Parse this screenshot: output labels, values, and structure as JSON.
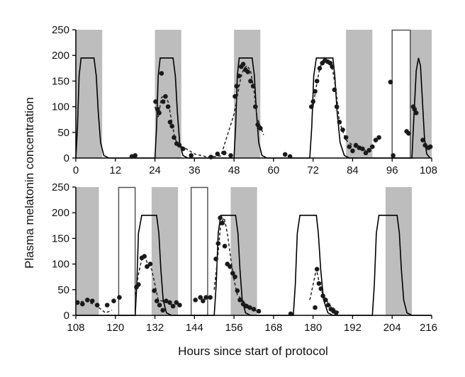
{
  "chart_data": {
    "type": "line",
    "ylabel": "Plasma melatonin concentration",
    "xlabel": "Hours since start of protocol",
    "colors": {
      "dark_episode": "#bdbdbd",
      "empty_episode_stroke": "#555555",
      "model": "#000000",
      "observed": "#222222",
      "points": "#1a1a1a"
    },
    "panels": [
      {
        "xlim": [
          0,
          108
        ],
        "ylim": [
          0,
          250
        ],
        "xticks": [
          "0",
          "12",
          "24",
          "36",
          "48",
          "60",
          "72",
          "84",
          "96",
          "108"
        ],
        "yticks": [
          "0",
          "50",
          "100",
          "150",
          "200",
          "250"
        ],
        "dark_episodes": [
          [
            0,
            8
          ],
          [
            24,
            32
          ],
          [
            48,
            56
          ],
          [
            82,
            90
          ],
          [
            101.5,
            108
          ]
        ],
        "open_episodes": [
          [
            96,
            101.5
          ]
        ],
        "model_curve": [
          [
            0,
            0
          ],
          [
            0.5,
            60
          ],
          [
            1,
            160
          ],
          [
            1.6,
            195
          ],
          [
            5.5,
            195
          ],
          [
            6.2,
            160
          ],
          [
            6.8,
            90
          ],
          [
            7.5,
            30
          ],
          [
            8.5,
            5
          ],
          [
            10,
            0
          ],
          [
            24,
            0
          ],
          [
            24.5,
            60
          ],
          [
            25,
            160
          ],
          [
            25.6,
            195
          ],
          [
            29.5,
            195
          ],
          [
            30.2,
            160
          ],
          [
            30.8,
            90
          ],
          [
            31.5,
            30
          ],
          [
            32.5,
            5
          ],
          [
            34,
            0
          ],
          [
            48,
            0
          ],
          [
            48.5,
            60
          ],
          [
            49,
            160
          ],
          [
            49.6,
            195
          ],
          [
            53.5,
            195
          ],
          [
            54.2,
            160
          ],
          [
            54.8,
            90
          ],
          [
            55.5,
            30
          ],
          [
            56.5,
            5
          ],
          [
            58,
            0
          ],
          [
            71,
            0
          ],
          [
            71.6,
            60
          ],
          [
            72.2,
            160
          ],
          [
            73,
            195
          ],
          [
            78,
            195
          ],
          [
            78.6,
            160
          ],
          [
            79.3,
            90
          ],
          [
            80.2,
            30
          ],
          [
            81.5,
            5
          ],
          [
            83,
            0
          ],
          [
            102,
            0
          ],
          [
            102.6,
            80
          ],
          [
            103.3,
            170
          ],
          [
            104,
            195
          ],
          [
            104.6,
            180
          ],
          [
            105.2,
            110
          ],
          [
            105.8,
            40
          ],
          [
            106.5,
            8
          ],
          [
            107.5,
            0
          ]
        ],
        "observed_curve": [
          [
            24,
            100
          ],
          [
            25,
            80
          ],
          [
            26,
            118
          ],
          [
            27,
            122
          ],
          [
            28,
            110
          ],
          [
            29,
            75
          ],
          [
            30,
            40
          ],
          [
            31,
            25
          ],
          [
            33,
            20
          ],
          [
            36,
            8
          ],
          [
            40,
            2
          ],
          [
            44,
            4
          ],
          [
            48,
            85
          ],
          [
            49,
            120
          ],
          [
            50,
            155
          ],
          [
            51,
            175
          ],
          [
            52,
            180
          ],
          [
            53,
            170
          ],
          [
            54,
            135
          ],
          [
            55,
            80
          ],
          [
            57,
            45
          ],
          [
            72,
            100
          ],
          [
            73,
            140
          ],
          [
            74,
            175
          ],
          [
            75,
            190
          ],
          [
            76,
            190
          ],
          [
            77,
            185
          ],
          [
            78,
            170
          ],
          [
            79,
            130
          ],
          [
            80,
            70
          ],
          [
            82,
            35
          ],
          [
            85,
            20
          ],
          [
            88,
            15
          ]
        ],
        "points": [
          [
            17,
            3
          ],
          [
            18,
            5
          ],
          [
            24.2,
            110
          ],
          [
            24.8,
            95
          ],
          [
            25.3,
            88
          ],
          [
            26,
            165
          ],
          [
            26.5,
            110
          ],
          [
            27.2,
            120
          ],
          [
            28,
            100
          ],
          [
            28.6,
            70
          ],
          [
            29.2,
            62
          ],
          [
            29.8,
            40
          ],
          [
            30.6,
            28
          ],
          [
            31.4,
            25
          ],
          [
            32.5,
            18
          ],
          [
            35,
            5
          ],
          [
            41,
            2
          ],
          [
            43,
            8
          ],
          [
            45,
            10
          ],
          [
            47,
            5
          ],
          [
            48.3,
            120
          ],
          [
            48.8,
            140
          ],
          [
            49.5,
            160
          ],
          [
            50.2,
            178
          ],
          [
            50.8,
            183
          ],
          [
            51.5,
            172
          ],
          [
            52.2,
            168
          ],
          [
            53,
            150
          ],
          [
            53.8,
            140
          ],
          [
            54.5,
            100
          ],
          [
            55.2,
            65
          ],
          [
            56,
            58
          ],
          [
            63.5,
            7
          ],
          [
            65,
            3
          ],
          [
            71.5,
            100
          ],
          [
            72,
            110
          ],
          [
            72.6,
            130
          ],
          [
            73.2,
            150
          ],
          [
            74,
            175
          ],
          [
            74.8,
            185
          ],
          [
            75.6,
            190
          ],
          [
            76.4,
            188
          ],
          [
            77.2,
            185
          ],
          [
            77.8,
            178
          ],
          [
            78.5,
            133
          ],
          [
            79.2,
            100
          ],
          [
            80,
            70
          ],
          [
            81,
            55
          ],
          [
            82,
            40
          ],
          [
            83,
            22
          ],
          [
            84,
            14
          ],
          [
            85,
            25
          ],
          [
            86,
            20
          ],
          [
            87,
            18
          ],
          [
            88,
            10
          ],
          [
            89,
            15
          ],
          [
            90,
            22
          ],
          [
            91,
            35
          ],
          [
            92,
            40
          ],
          [
            95.5,
            148
          ],
          [
            96.3,
            5
          ],
          [
            100.4,
            52
          ],
          [
            101,
            48
          ],
          [
            102.4,
            100
          ],
          [
            102.8,
            95
          ],
          [
            103.3,
            88
          ],
          [
            105.3,
            35
          ],
          [
            106,
            25
          ],
          [
            107,
            20
          ],
          [
            107.6,
            22
          ]
        ]
      },
      {
        "xlim": [
          108,
          216
        ],
        "ylim": [
          0,
          250
        ],
        "xticks": [
          "108",
          "120",
          "132",
          "144",
          "156",
          "168",
          "180",
          "192",
          "204",
          "216"
        ],
        "yticks": [
          "0",
          "50",
          "100",
          "150",
          "200",
          "250"
        ],
        "dark_episodes": [
          [
            108,
            115
          ],
          [
            131,
            139
          ],
          [
            155,
            163
          ],
          [
            202,
            210
          ]
        ],
        "open_episodes": [
          [
            121,
            126
          ],
          [
            143,
            148
          ]
        ],
        "model_curve": [
          [
            108,
            0
          ],
          [
            126,
            0
          ],
          [
            126.5,
            60
          ],
          [
            127,
            160
          ],
          [
            128,
            195
          ],
          [
            132.5,
            195
          ],
          [
            133.2,
            160
          ],
          [
            133.8,
            90
          ],
          [
            134.5,
            30
          ],
          [
            135.5,
            5
          ],
          [
            137,
            0
          ],
          [
            150,
            0
          ],
          [
            150.6,
            60
          ],
          [
            151.2,
            160
          ],
          [
            152,
            195
          ],
          [
            156.5,
            195
          ],
          [
            157.2,
            160
          ],
          [
            157.8,
            90
          ],
          [
            158.5,
            30
          ],
          [
            159.5,
            5
          ],
          [
            161,
            0
          ],
          [
            174,
            0
          ],
          [
            174.6,
            60
          ],
          [
            175.2,
            160
          ],
          [
            176,
            195
          ],
          [
            181,
            195
          ],
          [
            181.6,
            160
          ],
          [
            182.3,
            90
          ],
          [
            183.2,
            30
          ],
          [
            184.5,
            5
          ],
          [
            186,
            0
          ],
          [
            198,
            0
          ],
          [
            198.6,
            60
          ],
          [
            199.2,
            160
          ],
          [
            200,
            195
          ],
          [
            205.5,
            195
          ],
          [
            206.2,
            160
          ],
          [
            206.8,
            90
          ],
          [
            207.5,
            30
          ],
          [
            208.5,
            5
          ],
          [
            210,
            0
          ],
          [
            216,
            0
          ]
        ],
        "observed_curve": [
          [
            108,
            25
          ],
          [
            111,
            28
          ],
          [
            114,
            20
          ],
          [
            117,
            5
          ],
          [
            119,
            10
          ],
          [
            126,
            40
          ],
          [
            127,
            80
          ],
          [
            128,
            110
          ],
          [
            129,
            115
          ],
          [
            130,
            95
          ],
          [
            131,
            90
          ],
          [
            132,
            60
          ],
          [
            133,
            30
          ],
          [
            136,
            25
          ],
          [
            138,
            15
          ],
          [
            150,
            50
          ],
          [
            151,
            110
          ],
          [
            152,
            180
          ],
          [
            153,
            190
          ],
          [
            154,
            160
          ],
          [
            155,
            110
          ],
          [
            156,
            70
          ],
          [
            157,
            40
          ],
          [
            160,
            20
          ],
          [
            163,
            8
          ],
          [
            179,
            30
          ],
          [
            180,
            60
          ],
          [
            181,
            90
          ],
          [
            182,
            60
          ],
          [
            183,
            40
          ],
          [
            185,
            20
          ],
          [
            188,
            5
          ]
        ],
        "points": [
          [
            108.5,
            25
          ],
          [
            110,
            22
          ],
          [
            111.5,
            30
          ],
          [
            113,
            28
          ],
          [
            114.5,
            20
          ],
          [
            117.5,
            20
          ],
          [
            119.5,
            28
          ],
          [
            121.2,
            35
          ],
          [
            126.4,
            55
          ],
          [
            127,
            60
          ],
          [
            128,
            112
          ],
          [
            128.8,
            115
          ],
          [
            129.6,
            95
          ],
          [
            130.6,
            100
          ],
          [
            131.8,
            48
          ],
          [
            132.6,
            28
          ],
          [
            133.4,
            20
          ],
          [
            134.4,
            10
          ],
          [
            135.4,
            28
          ],
          [
            136.5,
            25
          ],
          [
            137.5,
            18
          ],
          [
            138.5,
            25
          ],
          [
            139.5,
            20
          ],
          [
            144.3,
            30
          ],
          [
            145.8,
            35
          ],
          [
            146.6,
            28
          ],
          [
            147.5,
            35
          ],
          [
            148.8,
            35
          ],
          [
            150.5,
            110
          ],
          [
            151.2,
            140
          ],
          [
            151.8,
            190
          ],
          [
            152.5,
            180
          ],
          [
            153.2,
            135
          ],
          [
            154,
            100
          ],
          [
            154.8,
            95
          ],
          [
            155.6,
            82
          ],
          [
            156.3,
            75
          ],
          [
            157,
            48
          ],
          [
            157.8,
            30
          ],
          [
            158.8,
            22
          ],
          [
            159.8,
            18
          ],
          [
            160.8,
            15
          ],
          [
            162,
            12
          ],
          [
            163.5,
            8
          ],
          [
            173.2,
            3
          ],
          [
            180.6,
            15
          ],
          [
            181.2,
            90
          ],
          [
            181.8,
            62
          ],
          [
            182.4,
            52
          ],
          [
            183,
            38
          ],
          [
            183.8,
            30
          ],
          [
            184.6,
            20
          ],
          [
            185.4,
            12
          ],
          [
            186.2,
            8
          ],
          [
            187,
            5
          ]
        ]
      }
    ]
  }
}
